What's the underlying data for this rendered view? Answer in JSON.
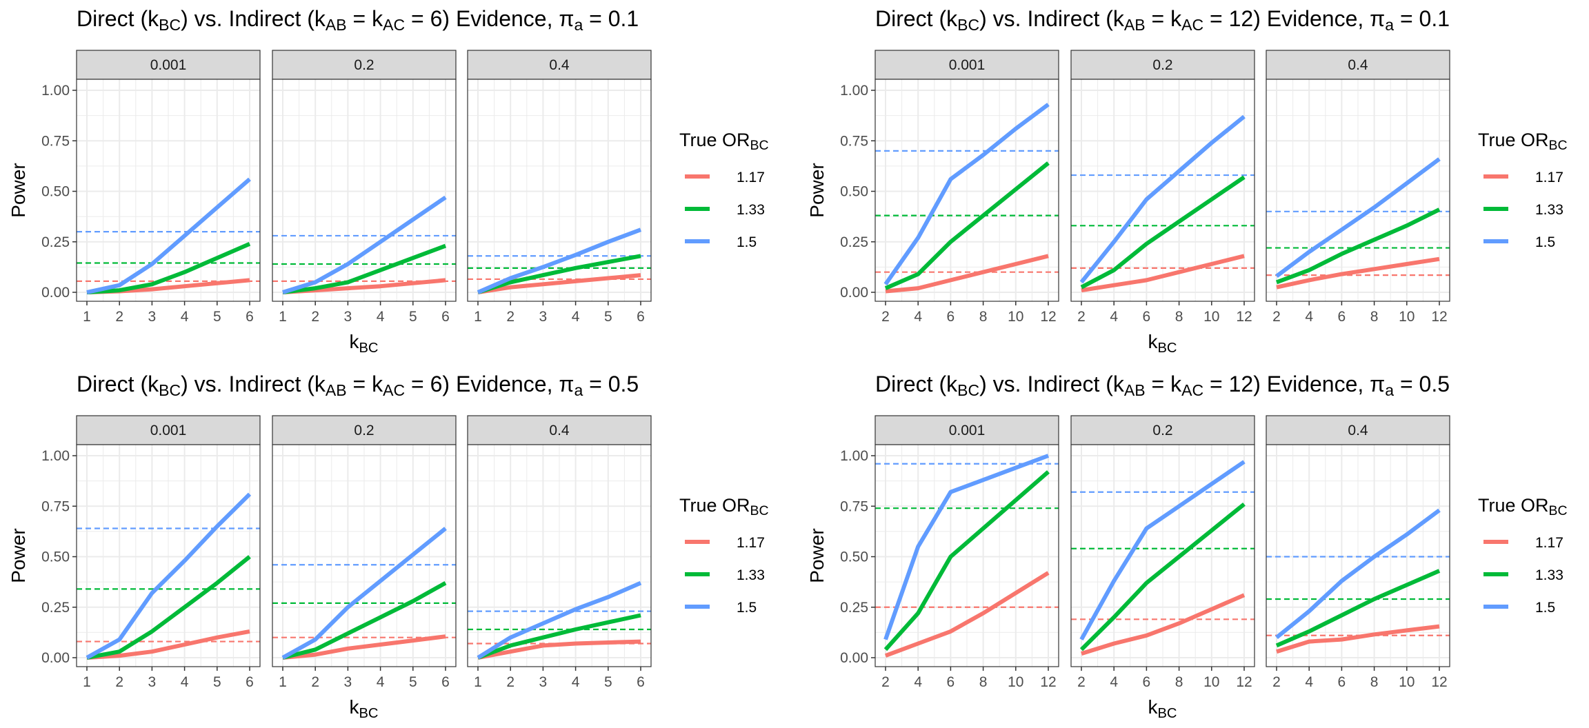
{
  "chart_data": [
    {
      "type": "line",
      "title": "Direct (kBC) vs. Indirect (kAB = kAC = 6) Evidence, πa = 0.1",
      "title_parts": {
        "pre": "Direct (k",
        "s1": "BC",
        "m1": ") vs. Indirect (k",
        "s2": "AB",
        "m2": " = k",
        "s3": "AC",
        "m3": " = 6) Evidence, π",
        "s4": "a",
        "post": " = 0.1"
      },
      "xlabel": "k",
      "xlabel_sub": "BC",
      "ylabel": "Power",
      "ylim": [
        0,
        1
      ],
      "yticks": [
        "0.00",
        "0.25",
        "0.50",
        "0.75",
        "1.00"
      ],
      "xlim": [
        1,
        6
      ],
      "xticks": [
        1,
        2,
        3,
        4,
        5,
        6
      ],
      "legend": {
        "title": "True OR",
        "title_sub": "BC",
        "entries": [
          "1.17",
          "1.33",
          "1.5"
        ]
      },
      "panels": [
        {
          "label": "0.001",
          "series": [
            {
              "name": "1.17",
              "x": [
                1,
                2,
                3,
                4,
                5,
                6
              ],
              "y": [
                0.0,
                0.005,
                0.015,
                0.03,
                0.045,
                0.06
              ]
            },
            {
              "name": "1.33",
              "x": [
                1,
                2,
                3,
                4,
                5,
                6
              ],
              "y": [
                0.0,
                0.01,
                0.04,
                0.1,
                0.17,
                0.24
              ]
            },
            {
              "name": "1.5",
              "x": [
                1,
                2,
                3,
                4,
                5,
                6
              ],
              "y": [
                0.0,
                0.035,
                0.14,
                0.28,
                0.42,
                0.56
              ]
            }
          ],
          "hlines": [
            0.055,
            0.145,
            0.3
          ]
        },
        {
          "label": "0.2",
          "series": [
            {
              "name": "1.17",
              "x": [
                1,
                2,
                3,
                4,
                5,
                6
              ],
              "y": [
                0.0,
                0.01,
                0.02,
                0.03,
                0.045,
                0.06
              ]
            },
            {
              "name": "1.33",
              "x": [
                1,
                2,
                3,
                4,
                5,
                6
              ],
              "y": [
                0.0,
                0.02,
                0.05,
                0.11,
                0.17,
                0.23
              ]
            },
            {
              "name": "1.5",
              "x": [
                1,
                2,
                3,
                4,
                5,
                6
              ],
              "y": [
                0.0,
                0.05,
                0.14,
                0.25,
                0.36,
                0.47
              ]
            }
          ],
          "hlines": [
            0.055,
            0.14,
            0.28
          ]
        },
        {
          "label": "0.4",
          "series": [
            {
              "name": "1.17",
              "x": [
                1,
                2,
                3,
                4,
                5,
                6
              ],
              "y": [
                0.0,
                0.025,
                0.04,
                0.055,
                0.07,
                0.085
              ]
            },
            {
              "name": "1.33",
              "x": [
                1,
                2,
                3,
                4,
                5,
                6
              ],
              "y": [
                0.0,
                0.05,
                0.085,
                0.12,
                0.15,
                0.18
              ]
            },
            {
              "name": "1.5",
              "x": [
                1,
                2,
                3,
                4,
                5,
                6
              ],
              "y": [
                0.0,
                0.07,
                0.125,
                0.185,
                0.25,
                0.31
              ]
            }
          ],
          "hlines": [
            0.065,
            0.12,
            0.18
          ]
        }
      ]
    },
    {
      "type": "line",
      "title": "Direct (kBC) vs. Indirect (kAB = kAC = 12) Evidence, πa = 0.1",
      "title_parts": {
        "pre": "Direct (k",
        "s1": "BC",
        "m1": ") vs. Indirect (k",
        "s2": "AB",
        "m2": " = k",
        "s3": "AC",
        "m3": " = 12) Evidence, π",
        "s4": "a",
        "post": " = 0.1"
      },
      "xlabel": "k",
      "xlabel_sub": "BC",
      "ylabel": "Power",
      "ylim": [
        0,
        1
      ],
      "yticks": [
        "0.00",
        "0.25",
        "0.50",
        "0.75",
        "1.00"
      ],
      "xlim": [
        2,
        12
      ],
      "xticks": [
        2,
        4,
        6,
        8,
        10,
        12
      ],
      "legend": {
        "title": "True OR",
        "title_sub": "BC",
        "entries": [
          "1.17",
          "1.33",
          "1.5"
        ]
      },
      "panels": [
        {
          "label": "0.001",
          "series": [
            {
              "name": "1.17",
              "x": [
                2,
                4,
                6,
                8,
                10,
                12
              ],
              "y": [
                0.005,
                0.02,
                0.06,
                0.1,
                0.14,
                0.18
              ]
            },
            {
              "name": "1.33",
              "x": [
                2,
                4,
                6,
                8,
                10,
                12
              ],
              "y": [
                0.02,
                0.09,
                0.25,
                0.38,
                0.51,
                0.64
              ]
            },
            {
              "name": "1.5",
              "x": [
                2,
                4,
                6,
                8,
                10,
                12
              ],
              "y": [
                0.04,
                0.27,
                0.56,
                0.68,
                0.81,
                0.93
              ]
            }
          ],
          "hlines": [
            0.1,
            0.38,
            0.7
          ]
        },
        {
          "label": "0.2",
          "series": [
            {
              "name": "1.17",
              "x": [
                2,
                4,
                6,
                8,
                10,
                12
              ],
              "y": [
                0.01,
                0.035,
                0.06,
                0.1,
                0.14,
                0.18
              ]
            },
            {
              "name": "1.33",
              "x": [
                2,
                4,
                6,
                8,
                10,
                12
              ],
              "y": [
                0.025,
                0.11,
                0.24,
                0.35,
                0.46,
                0.57
              ]
            },
            {
              "name": "1.5",
              "x": [
                2,
                4,
                6,
                8,
                10,
                12
              ],
              "y": [
                0.05,
                0.25,
                0.46,
                0.6,
                0.74,
                0.87
              ]
            }
          ],
          "hlines": [
            0.12,
            0.33,
            0.58
          ]
        },
        {
          "label": "0.4",
          "series": [
            {
              "name": "1.17",
              "x": [
                2,
                4,
                6,
                8,
                10,
                12
              ],
              "y": [
                0.025,
                0.06,
                0.09,
                0.115,
                0.14,
                0.165
              ]
            },
            {
              "name": "1.33",
              "x": [
                2,
                4,
                6,
                8,
                10,
                12
              ],
              "y": [
                0.05,
                0.11,
                0.19,
                0.26,
                0.33,
                0.41
              ]
            },
            {
              "name": "1.5",
              "x": [
                2,
                4,
                6,
                8,
                10,
                12
              ],
              "y": [
                0.08,
                0.2,
                0.31,
                0.42,
                0.54,
                0.66
              ]
            }
          ],
          "hlines": [
            0.085,
            0.22,
            0.4
          ]
        }
      ]
    },
    {
      "type": "line",
      "title": "Direct (kBC) vs. Indirect (kAB = kAC = 6) Evidence, πa = 0.5",
      "title_parts": {
        "pre": "Direct (k",
        "s1": "BC",
        "m1": ") vs. Indirect (k",
        "s2": "AB",
        "m2": " = k",
        "s3": "AC",
        "m3": " = 6) Evidence, π",
        "s4": "a",
        "post": " = 0.5"
      },
      "xlabel": "k",
      "xlabel_sub": "BC",
      "ylabel": "Power",
      "ylim": [
        0,
        1
      ],
      "yticks": [
        "0.00",
        "0.25",
        "0.50",
        "0.75",
        "1.00"
      ],
      "xlim": [
        1,
        6
      ],
      "xticks": [
        1,
        2,
        3,
        4,
        5,
        6
      ],
      "legend": {
        "title": "True OR",
        "title_sub": "BC",
        "entries": [
          "1.17",
          "1.33",
          "1.5"
        ]
      },
      "panels": [
        {
          "label": "0.001",
          "series": [
            {
              "name": "1.17",
              "x": [
                1,
                2,
                3,
                4,
                5,
                6
              ],
              "y": [
                0.0,
                0.01,
                0.03,
                0.065,
                0.1,
                0.13
              ]
            },
            {
              "name": "1.33",
              "x": [
                1,
                2,
                3,
                4,
                5,
                6
              ],
              "y": [
                0.0,
                0.03,
                0.13,
                0.25,
                0.37,
                0.5
              ]
            },
            {
              "name": "1.5",
              "x": [
                1,
                2,
                3,
                4,
                5,
                6
              ],
              "y": [
                0.0,
                0.09,
                0.32,
                0.48,
                0.65,
                0.81
              ]
            }
          ],
          "hlines": [
            0.08,
            0.34,
            0.64
          ]
        },
        {
          "label": "0.2",
          "series": [
            {
              "name": "1.17",
              "x": [
                1,
                2,
                3,
                4,
                5,
                6
              ],
              "y": [
                0.0,
                0.015,
                0.045,
                0.065,
                0.085,
                0.105
              ]
            },
            {
              "name": "1.33",
              "x": [
                1,
                2,
                3,
                4,
                5,
                6
              ],
              "y": [
                0.0,
                0.04,
                0.12,
                0.2,
                0.28,
                0.37
              ]
            },
            {
              "name": "1.5",
              "x": [
                1,
                2,
                3,
                4,
                5,
                6
              ],
              "y": [
                0.0,
                0.09,
                0.25,
                0.38,
                0.51,
                0.64
              ]
            }
          ],
          "hlines": [
            0.1,
            0.27,
            0.46
          ]
        },
        {
          "label": "0.4",
          "series": [
            {
              "name": "1.17",
              "x": [
                1,
                2,
                3,
                4,
                5,
                6
              ],
              "y": [
                0.0,
                0.03,
                0.06,
                0.07,
                0.075,
                0.08
              ]
            },
            {
              "name": "1.33",
              "x": [
                1,
                2,
                3,
                4,
                5,
                6
              ],
              "y": [
                0.0,
                0.06,
                0.1,
                0.14,
                0.175,
                0.21
              ]
            },
            {
              "name": "1.5",
              "x": [
                1,
                2,
                3,
                4,
                5,
                6
              ],
              "y": [
                0.0,
                0.1,
                0.17,
                0.24,
                0.3,
                0.37
              ]
            }
          ],
          "hlines": [
            0.07,
            0.14,
            0.23
          ]
        }
      ]
    },
    {
      "type": "line",
      "title": "Direct (kBC) vs. Indirect (kAB = kAC = 12) Evidence, πa = 0.5",
      "title_parts": {
        "pre": "Direct (k",
        "s1": "BC",
        "m1": ") vs. Indirect (k",
        "s2": "AB",
        "m2": " = k",
        "s3": "AC",
        "m3": " = 12) Evidence, π",
        "s4": "a",
        "post": " = 0.5"
      },
      "xlabel": "k",
      "xlabel_sub": "BC",
      "ylabel": "Power",
      "ylim": [
        0,
        1
      ],
      "yticks": [
        "0.00",
        "0.25",
        "0.50",
        "0.75",
        "1.00"
      ],
      "xlim": [
        2,
        12
      ],
      "xticks": [
        2,
        4,
        6,
        8,
        10,
        12
      ],
      "legend": {
        "title": "True OR",
        "title_sub": "BC",
        "entries": [
          "1.17",
          "1.33",
          "1.5"
        ]
      },
      "panels": [
        {
          "label": "0.001",
          "series": [
            {
              "name": "1.17",
              "x": [
                2,
                4,
                6,
                8,
                10,
                12
              ],
              "y": [
                0.01,
                0.07,
                0.13,
                0.22,
                0.32,
                0.42
              ]
            },
            {
              "name": "1.33",
              "x": [
                2,
                4,
                6,
                8,
                10,
                12
              ],
              "y": [
                0.04,
                0.22,
                0.5,
                0.64,
                0.78,
                0.92
              ]
            },
            {
              "name": "1.5",
              "x": [
                2,
                4,
                6,
                8,
                10,
                12
              ],
              "y": [
                0.09,
                0.55,
                0.82,
                0.88,
                0.94,
                1.0
              ]
            }
          ],
          "hlines": [
            0.25,
            0.74,
            0.96
          ]
        },
        {
          "label": "0.2",
          "series": [
            {
              "name": "1.17",
              "x": [
                2,
                4,
                6,
                8,
                10,
                12
              ],
              "y": [
                0.02,
                0.07,
                0.11,
                0.17,
                0.24,
                0.31
              ]
            },
            {
              "name": "1.33",
              "x": [
                2,
                4,
                6,
                8,
                10,
                12
              ],
              "y": [
                0.04,
                0.2,
                0.37,
                0.5,
                0.63,
                0.76
              ]
            },
            {
              "name": "1.5",
              "x": [
                2,
                4,
                6,
                8,
                10,
                12
              ],
              "y": [
                0.09,
                0.38,
                0.64,
                0.75,
                0.86,
                0.97
              ]
            }
          ],
          "hlines": [
            0.19,
            0.54,
            0.82
          ]
        },
        {
          "label": "0.4",
          "series": [
            {
              "name": "1.17",
              "x": [
                2,
                4,
                6,
                8,
                10,
                12
              ],
              "y": [
                0.03,
                0.08,
                0.09,
                0.115,
                0.135,
                0.155
              ]
            },
            {
              "name": "1.33",
              "x": [
                2,
                4,
                6,
                8,
                10,
                12
              ],
              "y": [
                0.06,
                0.13,
                0.21,
                0.29,
                0.36,
                0.43
              ]
            },
            {
              "name": "1.5",
              "x": [
                2,
                4,
                6,
                8,
                10,
                12
              ],
              "y": [
                0.1,
                0.23,
                0.38,
                0.5,
                0.61,
                0.73
              ]
            }
          ],
          "hlines": [
            0.11,
            0.29,
            0.5
          ]
        }
      ]
    }
  ],
  "colors": {
    "1.17": "#F8766D",
    "1.33": "#00BA38",
    "1.5": "#619CFF",
    "strip_bg": "#D9D9D9",
    "grid": "#EBEBEB",
    "panel_border": "#333333"
  }
}
